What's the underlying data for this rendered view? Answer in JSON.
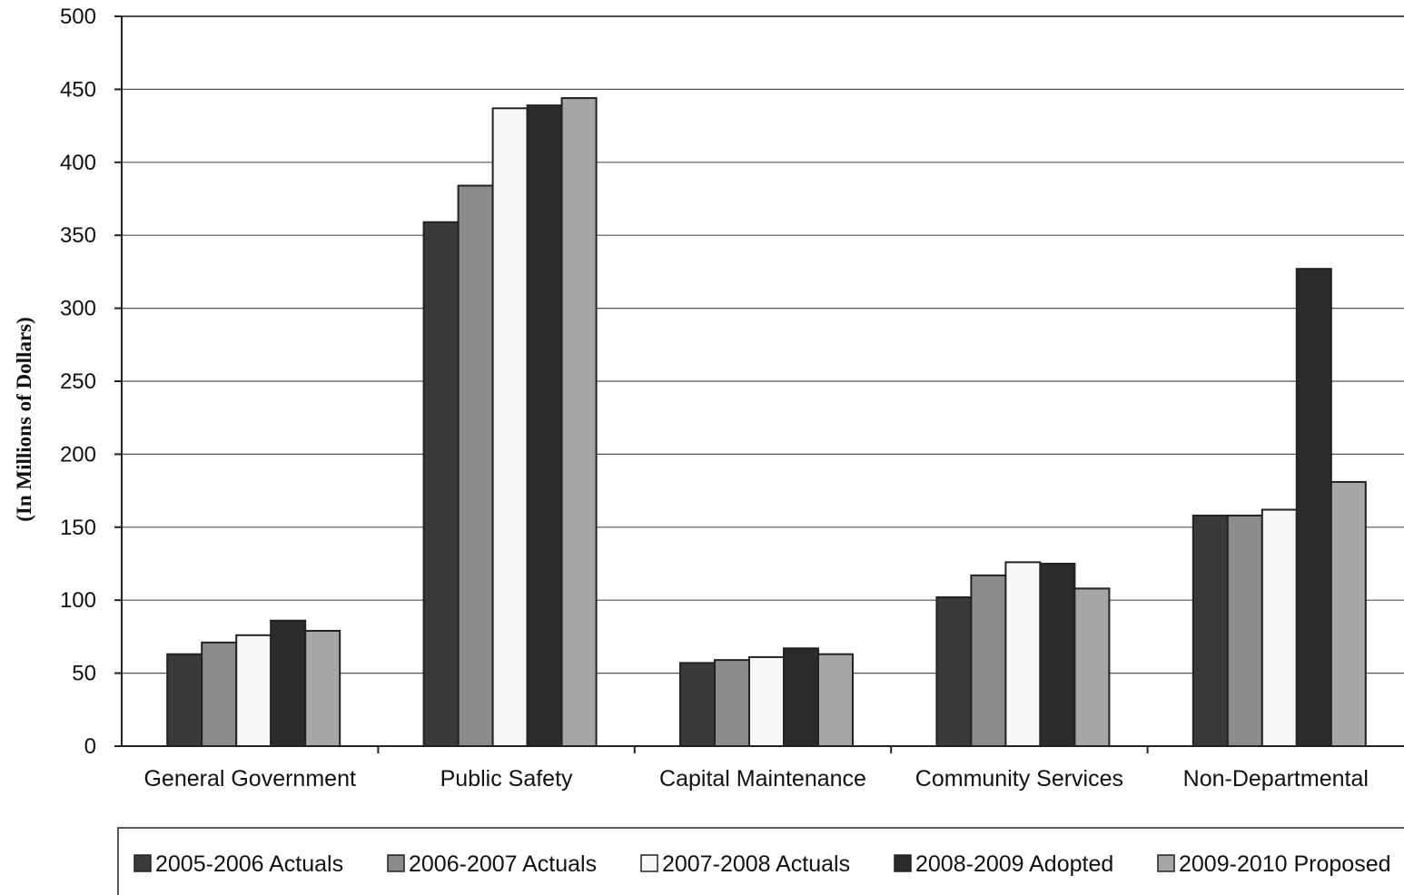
{
  "chart_data": {
    "type": "bar",
    "title": "",
    "xlabel": "",
    "ylabel": "(In Millions of Dollars)",
    "ylim": [
      0,
      500
    ],
    "yticks": [
      0,
      50,
      100,
      150,
      200,
      250,
      300,
      350,
      400,
      450,
      500
    ],
    "grid": true,
    "legend_position": "bottom",
    "categories": [
      "General Government",
      "Public Safety",
      "Capital Maintenance",
      "Community Services",
      "Non-Departmental"
    ],
    "series": [
      {
        "name": "2005-2006 Actuals",
        "color": "#3a3a3a",
        "values": [
          63,
          359,
          57,
          102,
          158
        ]
      },
      {
        "name": "2006-2007 Actuals",
        "color": "#8c8c8c",
        "values": [
          71,
          384,
          59,
          117,
          158
        ]
      },
      {
        "name": "2007-2008 Actuals",
        "color": "#f7f7f7",
        "values": [
          76,
          437,
          61,
          126,
          162
        ]
      },
      {
        "name": "2008-2009 Adopted",
        "color": "#2b2b2b",
        "values": [
          86,
          439,
          67,
          125,
          327
        ]
      },
      {
        "name": "2009-2010 Proposed",
        "color": "#a6a6a6",
        "values": [
          79,
          444,
          63,
          108,
          181
        ]
      }
    ]
  }
}
